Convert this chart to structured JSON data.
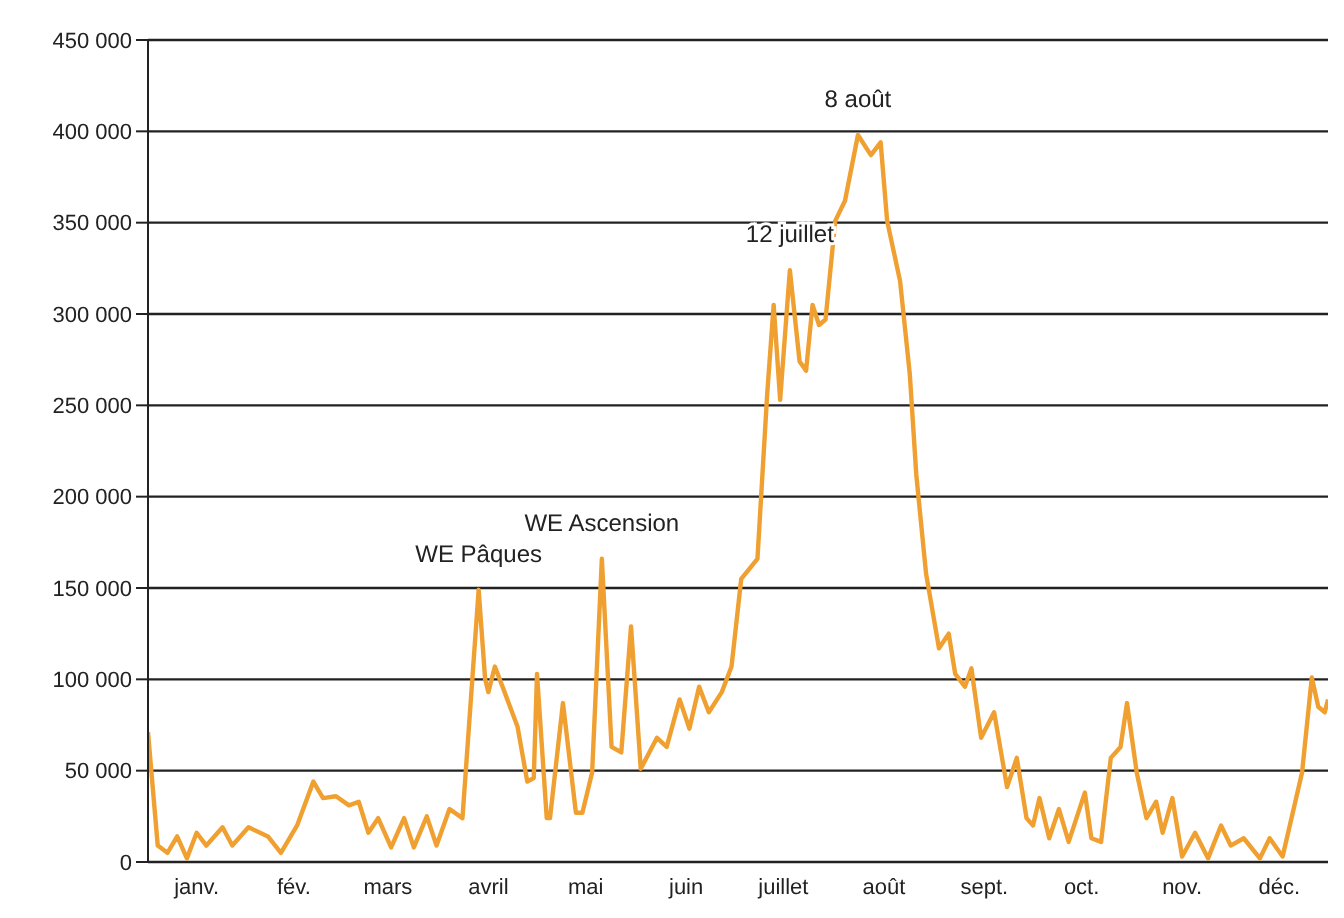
{
  "chart_data": {
    "type": "line",
    "grid": "y",
    "marker": "none",
    "line_style": "solid",
    "x": [
      "--01-01",
      "--01-04",
      "--01-07",
      "--01-10",
      "--01-13",
      "--01-16",
      "--01-19",
      "--01-24",
      "--01-27",
      "--02-01",
      "--02-07",
      "--02-11",
      "--02-16",
      "--02-21",
      "--02-24",
      "--02-28",
      "--03-04",
      "--03-07",
      "--03-10",
      "--03-13",
      "--03-17",
      "--03-21",
      "--03-24",
      "--03-28",
      "--03-31",
      "--04-04",
      "--04-08",
      "--04-13",
      "--04-15",
      "--04-16",
      "--04-18",
      "--04-21",
      "--04-25",
      "--04-28",
      "--04-30",
      "--05-01",
      "--05-04",
      "--05-05",
      "--05-09",
      "--05-13",
      "--05-15",
      "--05-18",
      "--05-21",
      "--05-24",
      "--05-27",
      "--05-30",
      "--06-02",
      "--06-07",
      "--06-10",
      "--06-14",
      "--06-17",
      "--06-20",
      "--06-23",
      "--06-27",
      "--06-30",
      "--07-03",
      "--07-08",
      "--07-11",
      "--07-13",
      "--07-15",
      "--07-18",
      "--07-21",
      "--07-23",
      "--07-25",
      "--07-27",
      "--07-29",
      "--08-01",
      "--08-04",
      "--08-08",
      "--08-12",
      "--08-15",
      "--08-17",
      "--08-21",
      "--08-24",
      "--08-26",
      "--08-29",
      "--09-02",
      "--09-05",
      "--09-07",
      "--09-10",
      "--09-12",
      "--09-15",
      "--09-19",
      "--09-23",
      "--09-26",
      "--09-29",
      "--10-01",
      "--10-03",
      "--10-06",
      "--10-09",
      "--10-12",
      "--10-17",
      "--10-19",
      "--10-22",
      "--10-25",
      "--10-28",
      "--10-30",
      "--11-02",
      "--11-05",
      "--11-08",
      "--11-10",
      "--11-13",
      "--11-16",
      "--11-20",
      "--11-24",
      "--11-28",
      "--12-01",
      "--12-05",
      "--12-10",
      "--12-13",
      "--12-17",
      "--12-23",
      "--12-26",
      "--12-28",
      "--12-30",
      "--12-31"
    ],
    "series": [
      {
        "color": "#f0a030",
        "values": [
          71000,
          9000,
          5000,
          14000,
          2000,
          16000,
          9000,
          19000,
          9000,
          19000,
          14000,
          5000,
          20000,
          44000,
          35000,
          36000,
          31000,
          33000,
          16000,
          24000,
          8000,
          24000,
          8000,
          25000,
          9000,
          29000,
          24000,
          149000,
          100000,
          93000,
          107000,
          93000,
          74000,
          44000,
          46000,
          103000,
          24000,
          24000,
          87000,
          27000,
          27000,
          49000,
          166000,
          63000,
          60000,
          129000,
          51000,
          68000,
          63000,
          89000,
          73000,
          96000,
          82000,
          93000,
          107000,
          155000,
          166000,
          256000,
          305000,
          253000,
          324000,
          274000,
          269000,
          305000,
          294000,
          297000,
          351000,
          362000,
          398000,
          387000,
          394000,
          351000,
          318000,
          267000,
          212000,
          158000,
          117000,
          125000,
          103000,
          96000,
          106000,
          68000,
          82000,
          41000,
          57000,
          24000,
          20000,
          35000,
          13000,
          29000,
          11000,
          38000,
          13000,
          11000,
          57000,
          63000,
          87000,
          49000,
          24000,
          33000,
          16000,
          35000,
          3000,
          16000,
          2000,
          20000,
          9000,
          13000,
          2000,
          13000,
          3000,
          49000,
          101000,
          85000,
          82000,
          89000
        ]
      }
    ],
    "xlim": [
      "--01-01",
      "--12-31"
    ],
    "xticks": [
      {
        "value": "--01-16",
        "label": "janv."
      },
      {
        "value": "--02-15",
        "label": "fév."
      },
      {
        "value": "--03-16",
        "label": "mars"
      },
      {
        "value": "--04-16",
        "label": "avril"
      },
      {
        "value": "--05-16",
        "label": "mai"
      },
      {
        "value": "--06-16",
        "label": "juin"
      },
      {
        "value": "--07-16",
        "label": "juillet"
      },
      {
        "value": "--08-16",
        "label": "août"
      },
      {
        "value": "--09-16",
        "label": "sept."
      },
      {
        "value": "--10-16",
        "label": "oct."
      },
      {
        "value": "--11-16",
        "label": "nov."
      },
      {
        "value": "--12-16",
        "label": "déc."
      }
    ],
    "ylim": [
      0,
      450000
    ],
    "yticks": [
      {
        "value": 0,
        "label": "0"
      },
      {
        "value": 50000,
        "label": "50 000"
      },
      {
        "value": 100000,
        "label": "100 000"
      },
      {
        "value": 150000,
        "label": "150 000"
      },
      {
        "value": 200000,
        "label": "200 000"
      },
      {
        "value": 250000,
        "label": "250 000"
      },
      {
        "value": 300000,
        "label": "300 000"
      },
      {
        "value": 350000,
        "label": "350 000"
      },
      {
        "value": 400000,
        "label": "400 000"
      },
      {
        "value": 450000,
        "label": "450 000"
      }
    ],
    "annotations": [
      {
        "text": "WE Pâques",
        "x": "--04-13",
        "y": 149000
      },
      {
        "text": "WE Ascension",
        "x": "--05-21",
        "y": 166000
      },
      {
        "text": "12 juillet",
        "x": "--07-18",
        "y": 324000
      },
      {
        "text": "8 août",
        "x": "--08-08",
        "y": 398000
      }
    ]
  }
}
